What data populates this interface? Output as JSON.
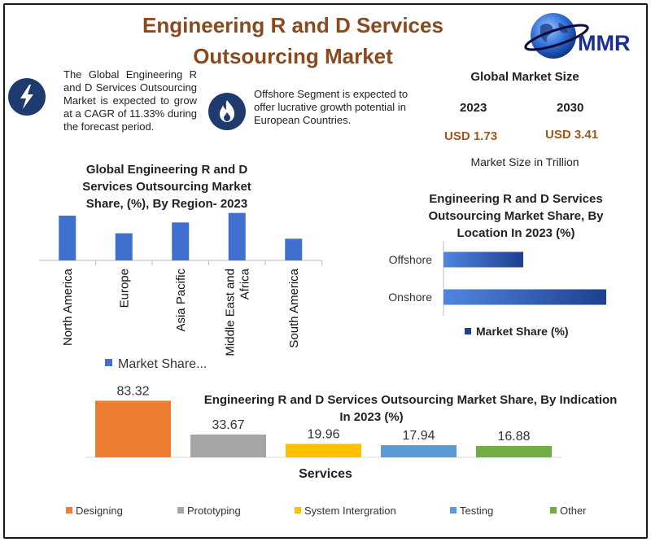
{
  "title_line1": "Engineering R and D Services",
  "title_line2": "Outsourcing Market",
  "logo_text": "MMR",
  "icons": {
    "left": "lightning-icon",
    "middle": "flame-icon",
    "logo": "globe-icon"
  },
  "intro_text": "The Global Engineering R and D Services Outsourcing Market is expected to grow at a CAGR of 11.33% during the forecast period.",
  "offshore_text": "Offshore Segment is expected to offer lucrative growth potential in European Countries.",
  "market_size": {
    "title": "Global Market Size",
    "year1": "2023",
    "year2": "2030",
    "value1": "USD 1.73",
    "value2": "USD 3.41",
    "note": "Market Size in Trillion"
  },
  "colors": {
    "title": "#8a4a1e",
    "bar_blue": "#3f6fcf",
    "loc_bar_dark": "#1f3f8f",
    "designing": "#ed7d31",
    "prototyping": "#a5a5a5",
    "system_integration": "#ffc000",
    "testing": "#5b9bd5",
    "other": "#70ad47"
  },
  "chart_data": [
    {
      "type": "bar",
      "title_lines": [
        "Global Engineering R and D",
        "Services Outsourcing Market",
        "Share, (%), By Region- 2023"
      ],
      "categories": [
        "North America",
        "Europe",
        "Asia Pacific",
        "Middle East and Africa",
        "South America"
      ],
      "category_lines": [
        [
          "North America"
        ],
        [
          "Europe"
        ],
        [
          "Asia Pacific"
        ],
        [
          "Middle East and",
          "Africa"
        ],
        [
          "South America"
        ]
      ],
      "values": [
        33,
        20,
        28,
        35,
        16
      ],
      "legend": "Market Share...",
      "ylim": [
        0,
        36
      ]
    },
    {
      "type": "bar",
      "orientation": "horizontal",
      "title_lines": [
        "Engineering R and D Services",
        "Outsourcing Market Share, By",
        "Location In 2023 (%)"
      ],
      "categories": [
        "Offshore",
        "Onshore"
      ],
      "values": [
        49,
        100
      ],
      "legend": "Market Share (%)",
      "xlim": [
        0,
        100
      ]
    },
    {
      "type": "bar",
      "title_lines": [
        "Engineering R and D Services Outsourcing Market Share, By Indication",
        "In 2023 (%)"
      ],
      "xlabel": "Services",
      "categories": [
        "Designing",
        "Prototyping",
        "System Intergration",
        "Testing",
        "Other"
      ],
      "values": [
        83.32,
        33.67,
        19.96,
        17.94,
        16.88
      ],
      "value_labels": [
        "83.32",
        "33.67",
        "19.96",
        "17.94",
        "16.88"
      ],
      "ylim": [
        0,
        85
      ]
    }
  ]
}
